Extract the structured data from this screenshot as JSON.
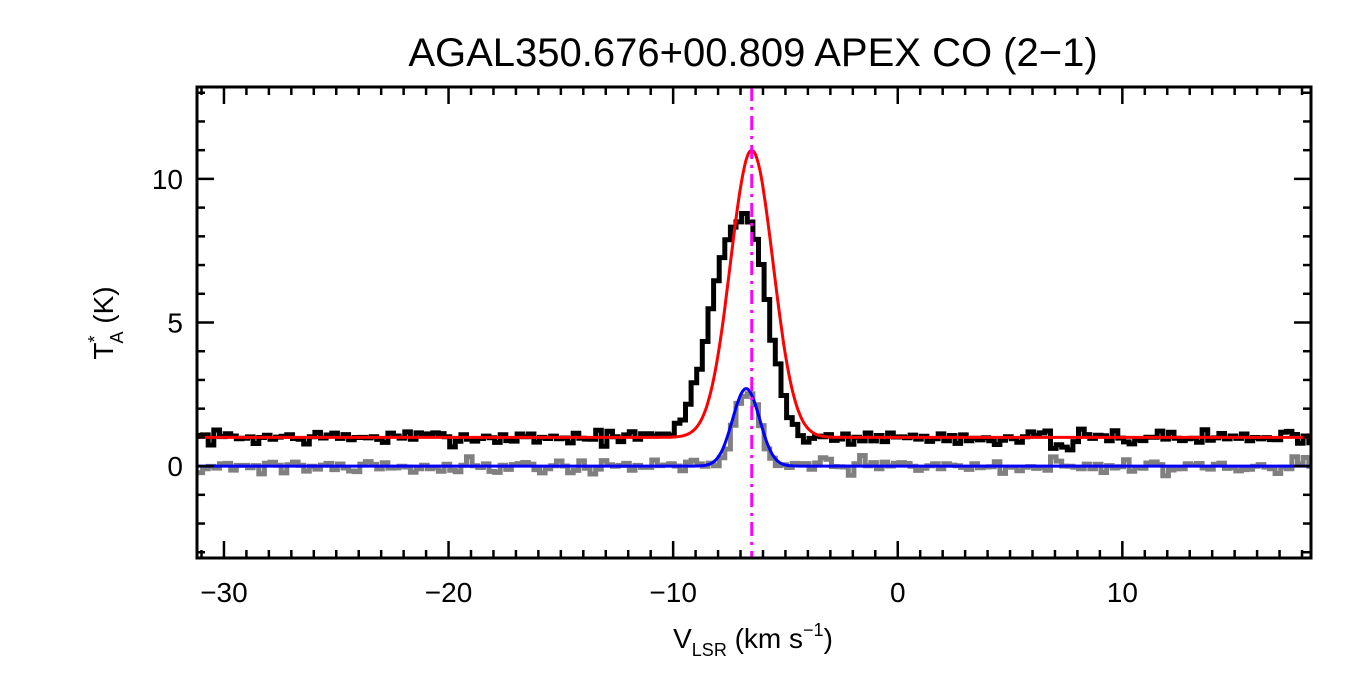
{
  "chart_data": {
    "type": "line",
    "title": "AGAL350.676+00.809  APEX CO (2−1)",
    "xlabel": {
      "main": "V",
      "sub": "LSR",
      "rest": " (km s",
      "sup": "−1",
      "end": ")"
    },
    "ylabel": {
      "main": "T",
      "sup": "*",
      "sub": "A",
      "rest": " (K)"
    },
    "xlim": [
      -31.2,
      18.4
    ],
    "ylim": [
      -3.2,
      13.2
    ],
    "x_ticks": [
      -30,
      -20,
      -10,
      0,
      10
    ],
    "x_tick_labels": [
      "−30",
      "−20",
      "−10",
      "0",
      "10"
    ],
    "y_ticks": [
      0,
      5,
      10
    ],
    "y_tick_labels": [
      "0",
      "5",
      "10"
    ],
    "x_minor_step": 1,
    "y_minor_step": 1,
    "vline": {
      "x": -6.5,
      "color": "#ff00ff",
      "style": "dash-dot"
    },
    "series": [
      {
        "role": "spectrum-offset",
        "color": "#000000",
        "style": "step",
        "width": 5,
        "x_start": -31.2,
        "x_step": 0.25,
        "base": 1.0,
        "noise_sigma": 0.13,
        "noise_seed": 7,
        "features": [
          {
            "type": "gauss",
            "amp": 5.8,
            "center": -7.6,
            "sigma": 0.95
          },
          {
            "type": "gauss",
            "amp": 4.6,
            "center": -6.3,
            "sigma": 0.75
          },
          {
            "type": "gauss",
            "amp": -0.5,
            "center": 7.4,
            "sigma": 0.3
          }
        ]
      },
      {
        "role": "spectrum-baseline",
        "color": "#808080",
        "style": "step",
        "width": 5,
        "x_start": -31.2,
        "x_step": 0.25,
        "base": 0.0,
        "noise_sigma": 0.13,
        "noise_seed": 21,
        "features": [
          {
            "type": "gauss",
            "amp": 2.6,
            "center": -6.7,
            "sigma": 0.55
          }
        ]
      },
      {
        "role": "fit-offset",
        "color": "#ff0000",
        "style": "smooth",
        "width": 3,
        "base": 1.0,
        "gauss": {
          "amp": 10.0,
          "center": -6.5,
          "sigma": 0.95
        }
      },
      {
        "role": "fit-baseline",
        "color": "#0000ff",
        "style": "smooth",
        "width": 3,
        "base": 0.0,
        "gauss": {
          "amp": 2.7,
          "center": -6.75,
          "sigma": 0.6
        }
      }
    ]
  }
}
